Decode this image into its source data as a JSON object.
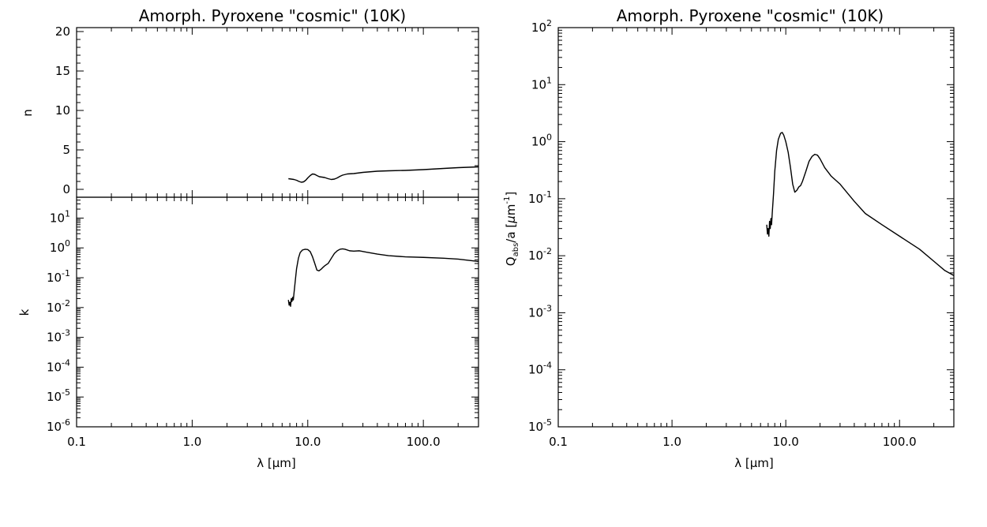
{
  "chart_data": [
    {
      "type": "line",
      "title": "Amorph. Pyroxene \"cosmic\" (10K)",
      "panels": [
        {
          "id": "n",
          "ylabel": "n",
          "yscale": "linear",
          "ylim": [
            -1,
            20.5
          ],
          "yticks": [
            0,
            5,
            10,
            15,
            20
          ],
          "ytick_labels": [
            "0",
            "5",
            "10",
            "15",
            "20"
          ],
          "series": [
            {
              "x": [
                6.8,
                7.2,
                7.6,
                8.0,
                8.4,
                8.8,
                9.2,
                9.6,
                10.0,
                10.5,
                11.0,
                11.5,
                12.0,
                12.6,
                13.3,
                14.0,
                15.0,
                16.0,
                17.0,
                18.0,
                19.0,
                20.0,
                22.0,
                25.0,
                30.0,
                40.0,
                50.0,
                70.0,
                100.0,
                150.0,
                200.0,
                300.0
              ],
              "y": [
                1.35,
                1.3,
                1.25,
                1.15,
                1.0,
                0.9,
                0.95,
                1.15,
                1.45,
                1.75,
                1.95,
                1.9,
                1.75,
                1.6,
                1.55,
                1.5,
                1.35,
                1.25,
                1.3,
                1.45,
                1.65,
                1.8,
                1.95,
                2.0,
                2.15,
                2.3,
                2.35,
                2.4,
                2.5,
                2.65,
                2.75,
                2.85
              ]
            }
          ]
        },
        {
          "id": "k",
          "ylabel": "k",
          "yscale": "log",
          "ylim": [
            1e-06,
            50
          ],
          "yticks": [
            1e-06,
            1e-05,
            0.0001,
            0.001,
            0.01,
            0.1,
            1.0,
            10.0
          ],
          "ytick_exponents": [
            "-6",
            "-5",
            "-4",
            "-3",
            "-2",
            "-1",
            "0",
            "1"
          ],
          "series": [
            {
              "x": [
                6.8,
                6.9,
                7.0,
                7.1,
                7.2,
                7.3,
                7.4,
                7.5,
                7.6,
                7.8,
                8.0,
                8.3,
                8.6,
                9.0,
                9.5,
                10.0,
                10.5,
                11.0,
                11.5,
                12.0,
                12.5,
                13.0,
                13.5,
                14.0,
                15.0,
                16.0,
                17.0,
                18.0,
                19.0,
                20.0,
                21.0,
                23.0,
                25.0,
                28.0,
                32.0,
                40.0,
                50.0,
                70.0,
                100.0,
                150.0,
                200.0,
                300.0
              ],
              "y": [
                0.018,
                0.012,
                0.015,
                0.011,
                0.02,
                0.016,
                0.022,
                0.018,
                0.03,
                0.08,
                0.2,
                0.45,
                0.7,
                0.85,
                0.9,
                0.88,
                0.75,
                0.5,
                0.3,
                0.18,
                0.17,
                0.19,
                0.22,
                0.25,
                0.3,
                0.45,
                0.65,
                0.8,
                0.9,
                0.93,
                0.9,
                0.8,
                0.78,
                0.8,
                0.72,
                0.62,
                0.55,
                0.5,
                0.48,
                0.45,
                0.42,
                0.35
              ]
            }
          ]
        }
      ],
      "xlabel": "λ [μm]",
      "xscale": "log",
      "xlim": [
        0.1,
        300
      ],
      "xticks": [
        0.1,
        1.0,
        10.0,
        100.0
      ],
      "xtick_labels": [
        "0.1",
        "1.0",
        "10.0",
        "100.0"
      ],
      "grid": false
    },
    {
      "type": "line",
      "title": "Amorph. Pyroxene \"cosmic\" (10K)",
      "ylabel_parts": [
        "Q",
        "abs",
        "/a [",
        "μ",
        "m",
        "-1",
        "]"
      ],
      "yscale": "log",
      "ylim": [
        1e-05,
        100
      ],
      "yticks": [
        1e-05,
        0.0001,
        0.001,
        0.01,
        0.1,
        1.0,
        10.0,
        100.0
      ],
      "ytick_exponents": [
        "-5",
        "-4",
        "-3",
        "-2",
        "-1",
        "0",
        "1",
        "2"
      ],
      "xlabel": "λ [μm]",
      "xscale": "log",
      "xlim": [
        0.1,
        300
      ],
      "xticks": [
        0.1,
        1.0,
        10.0,
        100.0
      ],
      "xtick_labels": [
        "0.1",
        "1.0",
        "10.0",
        "100.0"
      ],
      "grid": false,
      "series": [
        {
          "x": [
            6.8,
            6.9,
            7.0,
            7.1,
            7.2,
            7.3,
            7.4,
            7.5,
            7.6,
            7.8,
            8.0,
            8.3,
            8.6,
            9.0,
            9.3,
            9.6,
            10.0,
            10.5,
            11.0,
            11.5,
            12.0,
            12.5,
            13.0,
            13.5,
            14.0,
            15.0,
            16.0,
            17.0,
            18.0,
            19.0,
            20.0,
            22.0,
            25.0,
            30.0,
            40.0,
            50.0,
            70.0,
            100.0,
            150.0,
            200.0,
            250.0,
            300.0
          ],
          "y": [
            0.035,
            0.024,
            0.03,
            0.022,
            0.04,
            0.03,
            0.045,
            0.035,
            0.055,
            0.12,
            0.3,
            0.7,
            1.1,
            1.4,
            1.45,
            1.3,
            1.0,
            0.65,
            0.35,
            0.18,
            0.13,
            0.14,
            0.16,
            0.17,
            0.2,
            0.3,
            0.45,
            0.55,
            0.6,
            0.58,
            0.5,
            0.35,
            0.25,
            0.18,
            0.09,
            0.055,
            0.035,
            0.022,
            0.013,
            0.008,
            0.0055,
            0.0045
          ]
        }
      ]
    }
  ]
}
